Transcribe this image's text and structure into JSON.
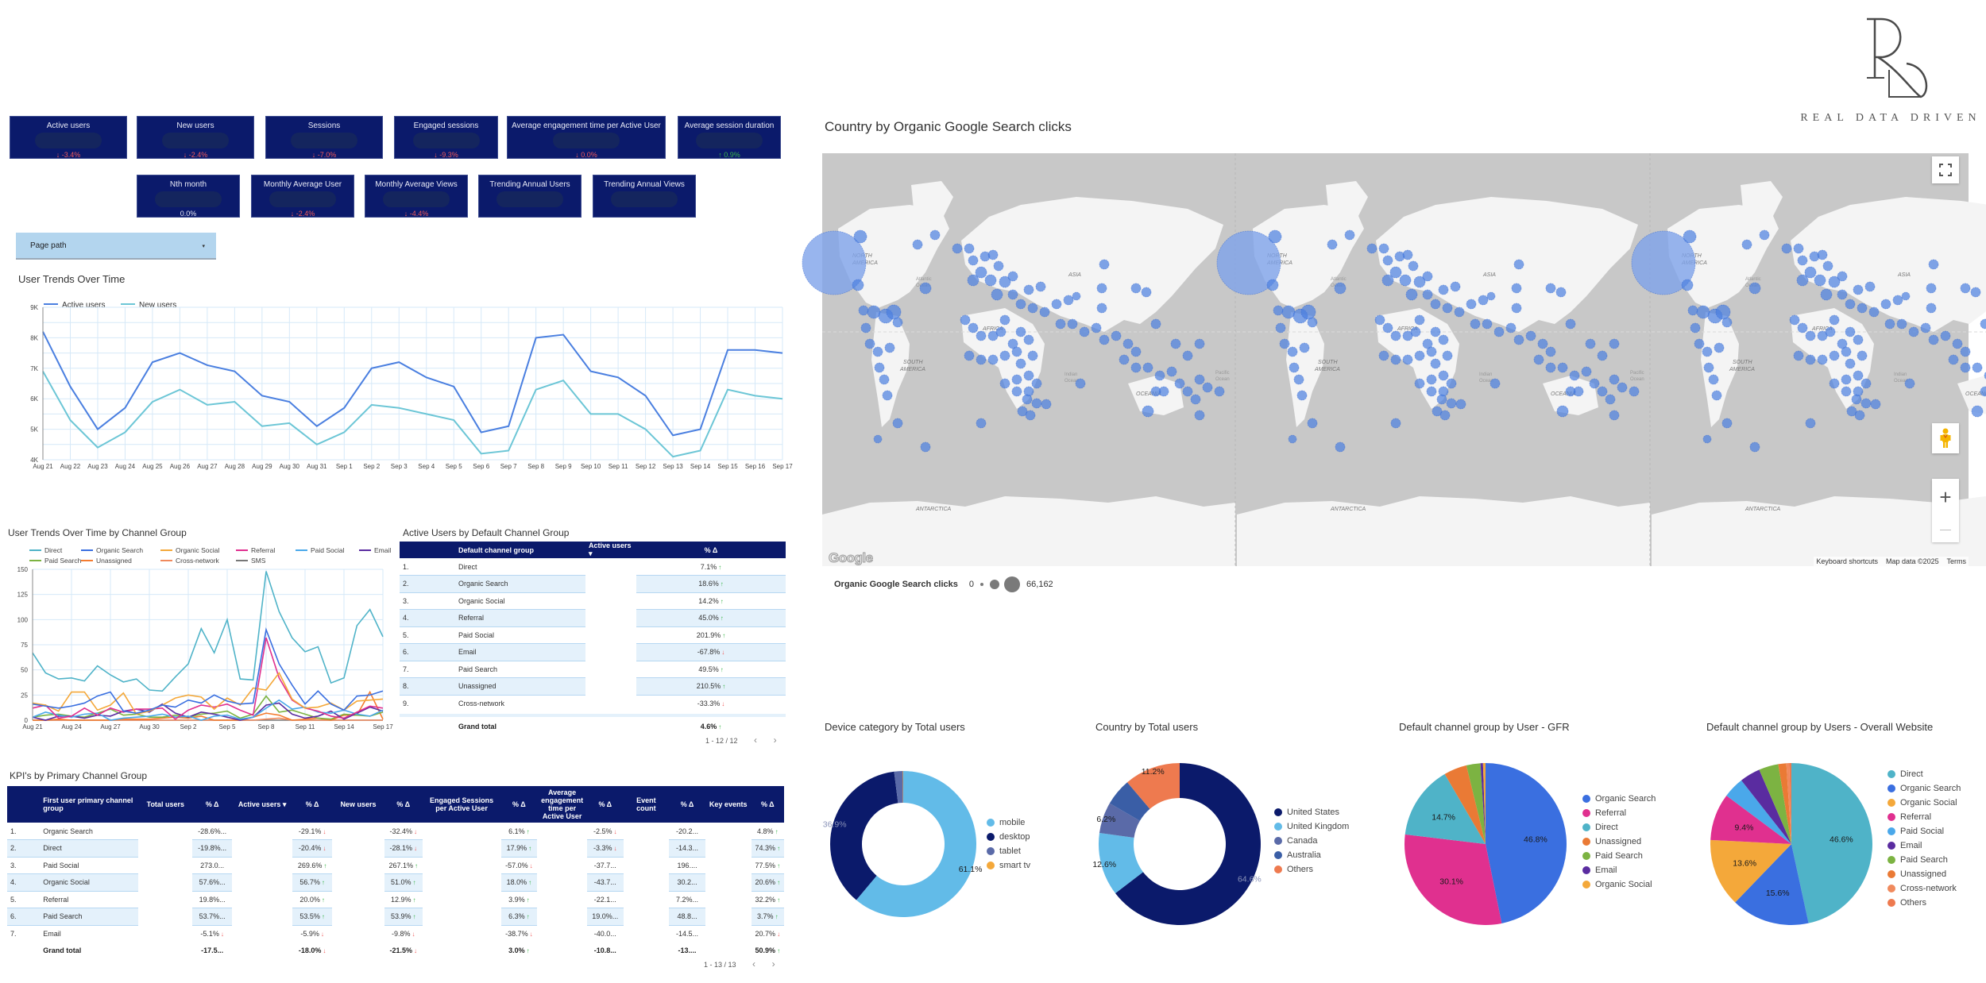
{
  "brand": {
    "name": "REAL DATA DRIVEN",
    "monogram": "RD"
  },
  "kpi_row1": [
    {
      "label": "Active users",
      "delta": "-3.4%",
      "trend": "down"
    },
    {
      "label": "New users",
      "delta": "-2.4%",
      "trend": "down"
    },
    {
      "label": "Sessions",
      "delta": "-7.0%",
      "trend": "down"
    },
    {
      "label": "Engaged sessions",
      "delta": "-9.3%",
      "trend": "down"
    },
    {
      "label": "Average engagement time per Active User",
      "delta": "0.0%",
      "trend": "down"
    },
    {
      "label": "Average session duration",
      "delta": "0.9%",
      "trend": "up"
    }
  ],
  "kpi_row2": [
    {
      "label": "Nth month",
      "delta": "0.0%",
      "trend": "neutral"
    },
    {
      "label": "Monthly Average User",
      "delta": "-2.4%",
      "trend": "down"
    },
    {
      "label": "Monthly Average Views",
      "delta": "-4.4%",
      "trend": "down"
    },
    {
      "label": "Trending Annual Users",
      "delta": "",
      "trend": "none"
    },
    {
      "label": "Trending Annual Views",
      "delta": "",
      "trend": "none"
    }
  ],
  "filter": {
    "label": "Page path",
    "caret": "▾"
  },
  "icons": {
    "arrow_up": "↑",
    "arrow_down": "↓",
    "sort_desc": "▾",
    "prev": "‹",
    "next": "›",
    "fullscreen": "⛶",
    "pegman": "pegman-icon",
    "zoom_in": "+",
    "zoom_out": "—"
  },
  "chart_data": [
    {
      "type": "line",
      "title": "User Trends Over Time",
      "categories": [
        "Aug 21",
        "Aug 22",
        "Aug 23",
        "Aug 24",
        "Aug 25",
        "Aug 26",
        "Aug 27",
        "Aug 28",
        "Aug 29",
        "Aug 30",
        "Aug 31",
        "Sep 1",
        "Sep 2",
        "Sep 3",
        "Sep 4",
        "Sep 5",
        "Sep 6",
        "Sep 7",
        "Sep 8",
        "Sep 9",
        "Sep 10",
        "Sep 11",
        "Sep 12",
        "Sep 13",
        "Sep 14",
        "Sep 15",
        "Sep 16",
        "Sep 17"
      ],
      "series": [
        {
          "name": "Active users",
          "color": "#4a7fe0",
          "values": [
            8200,
            6400,
            5000,
            5700,
            7200,
            7500,
            7100,
            6900,
            6100,
            5900,
            5100,
            5700,
            7000,
            7200,
            6700,
            6400,
            4900,
            5100,
            8000,
            8100,
            6900,
            6700,
            6100,
            4800,
            5000,
            7600,
            7600,
            7500
          ]
        },
        {
          "name": "New users",
          "color": "#6cc6d6",
          "values": [
            6900,
            5300,
            4400,
            4900,
            5900,
            6300,
            5800,
            5900,
            5100,
            5200,
            4500,
            4900,
            5800,
            5700,
            5500,
            5300,
            4200,
            4300,
            6300,
            6600,
            5500,
            5500,
            5000,
            4100,
            4300,
            6300,
            6100,
            6000
          ]
        }
      ],
      "xlabel": "",
      "ylabel": "",
      "yticks": [
        "4K",
        "5K",
        "6K",
        "7K",
        "8K",
        "9K"
      ],
      "ylim": [
        4000,
        9000
      ],
      "grid": true,
      "legend_position": "top"
    },
    {
      "type": "line",
      "title": "User Trends Over Time by Channel Group",
      "categories": [
        "Aug 21",
        "Aug 22",
        "Aug 23",
        "Aug 24",
        "Aug 25",
        "Aug 26",
        "Aug 27",
        "Aug 28",
        "Aug 29",
        "Aug 30",
        "Aug 31",
        "Sep 1",
        "Sep 2",
        "Sep 3",
        "Sep 4",
        "Sep 5",
        "Sep 6",
        "Sep 7",
        "Sep 8",
        "Sep 9",
        "Sep 10",
        "Sep 11",
        "Sep 12",
        "Sep 13",
        "Sep 14",
        "Sep 15",
        "Sep 16",
        "Sep 17"
      ],
      "xticks": [
        "Aug 21",
        "Aug 24",
        "Aug 27",
        "Aug 30",
        "Sep 2",
        "Sep 5",
        "Sep 8",
        "Sep 11",
        "Sep 14",
        "Sep 17"
      ],
      "series": [
        {
          "name": "Direct",
          "color": "#4fb3c8",
          "values": [
            67,
            47,
            41,
            42,
            39,
            54,
            45,
            38,
            41,
            30,
            29,
            43,
            56,
            91,
            67,
            100,
            41,
            40,
            148,
            108,
            82,
            68,
            73,
            37,
            42,
            94,
            110,
            83
          ]
        },
        {
          "name": "Organic Search",
          "color": "#3a6fe0",
          "values": [
            16,
            14,
            12,
            14,
            17,
            24,
            28,
            9,
            7,
            10,
            15,
            13,
            20,
            17,
            25,
            19,
            16,
            17,
            90,
            56,
            35,
            16,
            29,
            16,
            10,
            24,
            25,
            29
          ]
        },
        {
          "name": "Organic Social",
          "color": "#f4a83a",
          "values": [
            17,
            15,
            9,
            28,
            28,
            10,
            15,
            27,
            6,
            9,
            15,
            22,
            25,
            23,
            11,
            22,
            15,
            32,
            30,
            47,
            21,
            12,
            13,
            17,
            10,
            19,
            20,
            21
          ]
        },
        {
          "name": "Referral",
          "color": "#e0308f",
          "values": [
            12,
            15,
            2,
            4,
            12,
            5,
            12,
            8,
            11,
            11,
            12,
            1,
            10,
            15,
            13,
            16,
            10,
            5,
            82,
            42,
            20,
            12,
            9,
            4,
            2,
            8,
            14,
            12
          ]
        },
        {
          "name": "Paid Social",
          "color": "#4aa8ea",
          "values": [
            3,
            8,
            5,
            3,
            6,
            7,
            0,
            2,
            3,
            4,
            6,
            3,
            4,
            0,
            4,
            5,
            1,
            3,
            12,
            20,
            11,
            13,
            8,
            7,
            10,
            6,
            4,
            10
          ]
        },
        {
          "name": "Email",
          "color": "#5a2ca0",
          "values": [
            3,
            0,
            4,
            4,
            2,
            5,
            4,
            9,
            11,
            8,
            16,
            7,
            3,
            8,
            6,
            3,
            0,
            3,
            15,
            17,
            6,
            2,
            4,
            9,
            1,
            7,
            13,
            9
          ]
        },
        {
          "name": "Paid Search",
          "color": "#7cb342",
          "values": [
            3,
            5,
            6,
            4,
            3,
            7,
            11,
            5,
            6,
            3,
            3,
            5,
            3,
            6,
            7,
            9,
            2,
            6,
            24,
            8,
            10,
            6,
            2,
            1,
            6,
            5,
            4,
            8
          ]
        },
        {
          "name": "Unassigned",
          "color": "#f47c30",
          "values": [
            0,
            0,
            1,
            0,
            0,
            0,
            0,
            1,
            1,
            1,
            2,
            3,
            2,
            4,
            0,
            0,
            0,
            3,
            7,
            5,
            0,
            1,
            2,
            0,
            5,
            5,
            28,
            1
          ]
        },
        {
          "name": "Cross-network",
          "color": "#f08a5d",
          "values": [
            0,
            0,
            0,
            0,
            0,
            0,
            0,
            0,
            0,
            0,
            0,
            0,
            0,
            0,
            0,
            0,
            0,
            0,
            1,
            2,
            0,
            0,
            0,
            0,
            0,
            0,
            0,
            0
          ]
        },
        {
          "name": "SMS",
          "color": "#777777",
          "values": [
            0,
            0,
            0,
            0,
            0,
            0,
            0,
            0,
            0,
            0,
            0,
            0,
            0,
            0,
            0,
            0,
            0,
            0,
            0,
            0,
            0,
            0,
            0,
            0,
            0,
            0,
            0,
            0
          ]
        }
      ],
      "yticks": [
        "0",
        "25",
        "50",
        "75",
        "100",
        "125",
        "150"
      ],
      "ylim": [
        0,
        150
      ],
      "grid": true,
      "legend_position": "top"
    },
    {
      "type": "pie",
      "title": "Device category by Total users",
      "donut": true,
      "labels": [
        "mobile",
        "desktop",
        "tablet",
        "smart tv"
      ],
      "values": [
        61.1,
        36.9,
        1.9,
        0.1
      ],
      "colors": [
        "#62bbe8",
        "#0b1a6b",
        "#5a6aa8",
        "#f4a83a"
      ],
      "display_labels": [
        "61.1%",
        "36.9%",
        "",
        ""
      ]
    },
    {
      "type": "pie",
      "title": "Country by Total users",
      "donut": true,
      "labels": [
        "United States",
        "United Kingdom",
        "Canada",
        "Australia",
        "Others"
      ],
      "values": [
        64.6,
        12.6,
        6.2,
        5.4,
        11.2
      ],
      "colors": [
        "#0b1a6b",
        "#62bbe8",
        "#5a6aa8",
        "#3a5ea6",
        "#ee7a4f"
      ],
      "display_labels": [
        "64.6%",
        "12.6%",
        "6.2%",
        "",
        "11.2%"
      ]
    },
    {
      "type": "pie",
      "title": "Default channel group by User - GFR",
      "donut": false,
      "labels": [
        "Organic Search",
        "Referral",
        "Direct",
        "Unassigned",
        "Paid Search",
        "Email",
        "Organic Social"
      ],
      "values": [
        46.8,
        30.1,
        14.7,
        4.6,
        2.8,
        0.5,
        0.5
      ],
      "colors": [
        "#3a6fe0",
        "#e0308f",
        "#4fb3c8",
        "#ea7a35",
        "#7cb342",
        "#5a2ca0",
        "#f4a83a"
      ],
      "display_labels": [
        "46.8%",
        "30.1%",
        "14.7%",
        "",
        "",
        "",
        ""
      ]
    },
    {
      "type": "pie",
      "title": "Default channel group by Users - Overall Website",
      "donut": false,
      "labels": [
        "Direct",
        "Organic Search",
        "Organic Social",
        "Referral",
        "Paid Social",
        "Email",
        "Paid Search",
        "Unassigned",
        "Cross-network",
        "Others"
      ],
      "values": [
        46.6,
        15.6,
        13.6,
        9.4,
        4.2,
        4.1,
        3.9,
        1.6,
        0.6,
        0.4
      ],
      "colors": [
        "#4fb3c8",
        "#3a6fe0",
        "#f4a83a",
        "#e0308f",
        "#4aa8ea",
        "#5a2ca0",
        "#7cb342",
        "#ea7a35",
        "#f08a5d",
        "#ee7a4f"
      ],
      "display_labels": [
        "46.6%",
        "15.6%",
        "13.6%",
        "9.4%",
        "",
        "",
        "",
        "",
        "",
        ""
      ]
    }
  ],
  "channel_table": {
    "title": "Active Users by Default Channel Group",
    "columns": [
      "",
      "Default channel group",
      "Active users",
      "% Δ"
    ],
    "rows": [
      {
        "n": "1.",
        "name": "Direct",
        "delta": "7.1%",
        "trend": "up"
      },
      {
        "n": "2.",
        "name": "Organic Search",
        "delta": "18.6%",
        "trend": "up"
      },
      {
        "n": "3.",
        "name": "Organic Social",
        "delta": "14.2%",
        "trend": "up"
      },
      {
        "n": "4.",
        "name": "Referral",
        "delta": "45.0%",
        "trend": "up"
      },
      {
        "n": "5.",
        "name": "Paid Social",
        "delta": "201.9%",
        "trend": "up"
      },
      {
        "n": "6.",
        "name": "Email",
        "delta": "-67.8%",
        "trend": "down"
      },
      {
        "n": "7.",
        "name": "Paid Search",
        "delta": "49.5%",
        "trend": "up"
      },
      {
        "n": "8.",
        "name": "Unassigned",
        "delta": "210.5%",
        "trend": "up"
      },
      {
        "n": "9.",
        "name": "Cross-network",
        "delta": "-33.3%",
        "trend": "down"
      }
    ],
    "total": {
      "label": "Grand total",
      "delta": "4.6%",
      "trend": "up"
    },
    "pager": "1 - 12 / 12"
  },
  "kpi_table": {
    "title": "KPI's by Primary Channel Group",
    "columns": [
      "",
      "First user primary channel group",
      "Total users",
      "% Δ",
      "Active users ▾",
      "% Δ",
      "New users",
      "% Δ",
      "Engaged Sessions per Active User",
      "% Δ",
      "Average engagement time per Active User",
      "% Δ",
      "Event count",
      "% Δ",
      "Key events",
      "% Δ"
    ],
    "rows": [
      {
        "n": "1.",
        "name": "Organic Search",
        "tu": "-28.6%...",
        "tu_t": "",
        "au": "-29.1%",
        "au_t": "down",
        "nu": "-32.4%",
        "nu_t": "down",
        "es": "6.1%",
        "es_t": "up",
        "aet": "-2.5%",
        "aet_t": "down",
        "ec": "-20.2...",
        "ec_t": "",
        "ke": "4.8%",
        "ke_t": "up"
      },
      {
        "n": "2.",
        "name": "Direct",
        "tu": "-19.8%...",
        "tu_t": "",
        "au": "-20.4%",
        "au_t": "down",
        "nu": "-28.1%",
        "nu_t": "down",
        "es": "17.9%",
        "es_t": "up",
        "aet": "-3.3%",
        "aet_t": "down",
        "ec": "-14.3...",
        "ec_t": "",
        "ke": "74.3%",
        "ke_t": "up"
      },
      {
        "n": "3.",
        "name": "Paid Social",
        "tu": "273.0...",
        "tu_t": "",
        "au": "269.6%",
        "au_t": "up",
        "nu": "267.1%",
        "nu_t": "up",
        "es": "-57.0%",
        "es_t": "down",
        "aet": "-37.7...",
        "aet_t": "",
        "ec": "196....",
        "ec_t": "",
        "ke": "77.5%",
        "ke_t": "up"
      },
      {
        "n": "4.",
        "name": "Organic Social",
        "tu": "57.6%...",
        "tu_t": "",
        "au": "56.7%",
        "au_t": "up",
        "nu": "51.0%",
        "nu_t": "up",
        "es": "18.0%",
        "es_t": "up",
        "aet": "-43.7...",
        "aet_t": "",
        "ec": "30.2...",
        "ec_t": "",
        "ke": "20.6%",
        "ke_t": "up"
      },
      {
        "n": "5.",
        "name": "Referral",
        "tu": "19.8%...",
        "tu_t": "",
        "au": "20.0%",
        "au_t": "up",
        "nu": "12.9%",
        "nu_t": "up",
        "es": "3.9%",
        "es_t": "up",
        "aet": "-22.1...",
        "aet_t": "",
        "ec": "7.2%...",
        "ec_t": "",
        "ke": "32.2%",
        "ke_t": "up"
      },
      {
        "n": "6.",
        "name": "Paid Search",
        "tu": "53.7%...",
        "tu_t": "",
        "au": "53.5%",
        "au_t": "up",
        "nu": "53.9%",
        "nu_t": "up",
        "es": "6.3%",
        "es_t": "up",
        "aet": "19.0%...",
        "aet_t": "",
        "ec": "48.8...",
        "ec_t": "",
        "ke": "3.7%",
        "ke_t": "up"
      },
      {
        "n": "7.",
        "name": "Email",
        "tu": "-5.1%",
        "tu_t": "down",
        "au": "-5.9%",
        "au_t": "down",
        "nu": "-9.8%",
        "nu_t": "down",
        "es": "-38.7%",
        "es_t": "down",
        "aet": "-40.0...",
        "aet_t": "",
        "ec": "-14.5...",
        "ec_t": "",
        "ke": "20.7%",
        "ke_t": "down"
      }
    ],
    "total": {
      "label": "Grand total",
      "tu": "-17.5...",
      "tu_t": "",
      "au": "-18.0%",
      "au_t": "down",
      "nu": "-21.5%",
      "nu_t": "down",
      "es": "3.0%",
      "es_t": "up",
      "aet": "-10.8...",
      "aet_t": "",
      "ec": "-13....",
      "ec_t": "",
      "ke": "50.9%",
      "ke_t": "up"
    },
    "pager": "1 - 13 / 13"
  },
  "map": {
    "title": "Country by Organic Google Search clicks",
    "continent_labels": [
      "NORTH AMERICA",
      "SOUTH AMERICA",
      "ASIA",
      "AFRICA",
      "OCEANIA",
      "ANTARCTICA"
    ],
    "ocean_labels": [
      "Atlantic Ocean",
      "Indian Ocean",
      "Pacific Ocean"
    ],
    "footer": {
      "keyboard": "Keyboard shortcuts",
      "mapdata": "Map data ©2025",
      "terms": "Terms"
    },
    "google": "Google",
    "legend": {
      "metric": "Organic Google Search clicks",
      "min": "0",
      "max": "66,162"
    }
  }
}
